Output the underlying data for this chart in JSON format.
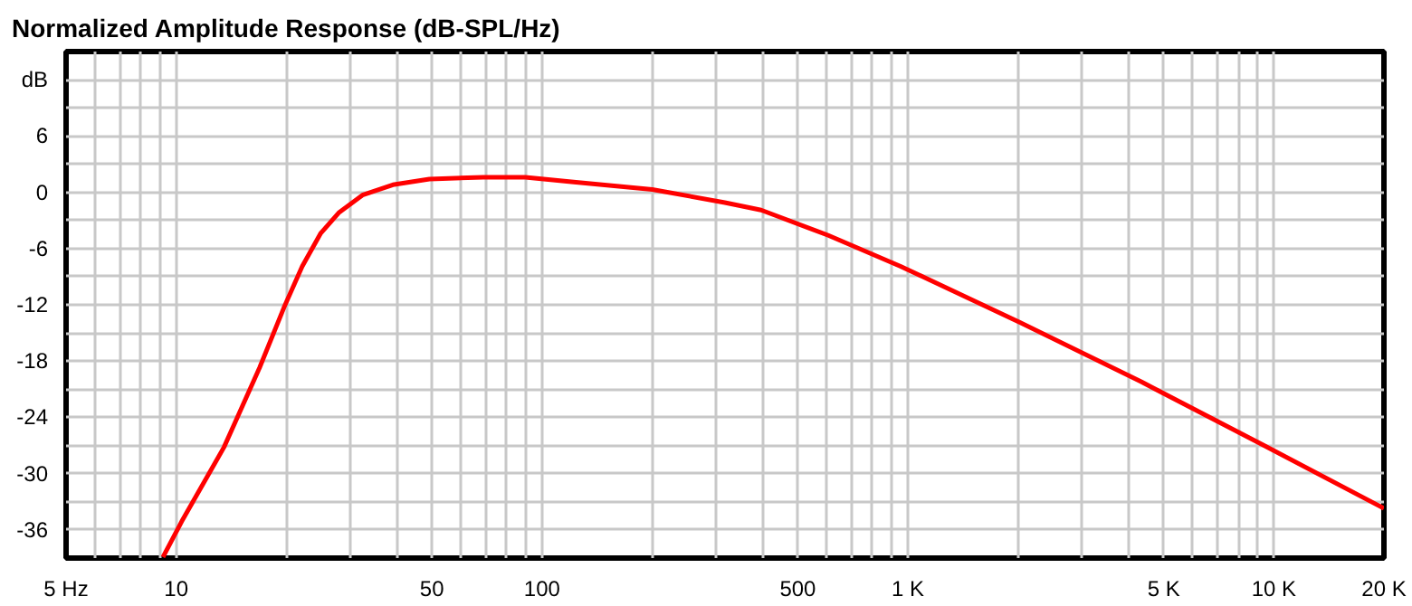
{
  "chart_data": {
    "type": "line",
    "title": "Normalized Amplitude Response (dB-SPL/Hz)",
    "log": "x",
    "grid": true,
    "marker": "none",
    "line_style": "solid",
    "x": [
      9.2,
      10.35,
      13.5,
      16.9,
      19.7,
      22.1,
      24.8,
      27.8,
      32.3,
      39.1,
      49.2,
      69,
      90,
      122,
      200,
      316,
      397,
      606,
      955,
      2030,
      4340,
      9300,
      20000
    ],
    "series": [
      {
        "color": "#ff0000",
        "values": [
          -38.9,
          -35.1,
          -27.2,
          -18.7,
          -12.3,
          -7.9,
          -4.4,
          -2.2,
          -0.3,
          0.8,
          1.4,
          1.6,
          1.6,
          1.1,
          0.3,
          -1.1,
          -1.9,
          -4.6,
          -7.9,
          -13.9,
          -20.2,
          -26.9,
          -33.7
        ]
      }
    ],
    "xlim": [
      5,
      20000
    ],
    "ylim": [
      -39,
      15
    ],
    "xticks": [
      {
        "value": 5,
        "label": "5 Hz"
      },
      {
        "value": 6,
        "label": null
      },
      {
        "value": 7,
        "label": null
      },
      {
        "value": 8,
        "label": null
      },
      {
        "value": 9,
        "label": null
      },
      10,
      {
        "value": 20,
        "label": null
      },
      {
        "value": 30,
        "label": null
      },
      {
        "value": 40,
        "label": null
      },
      50,
      {
        "value": 60,
        "label": null
      },
      {
        "value": 70,
        "label": null
      },
      {
        "value": 80,
        "label": null
      },
      {
        "value": 90,
        "label": null
      },
      100,
      {
        "value": 200,
        "label": null
      },
      {
        "value": 300,
        "label": null
      },
      {
        "value": 400,
        "label": null
      },
      500,
      {
        "value": 600,
        "label": null
      },
      {
        "value": 700,
        "label": null
      },
      {
        "value": 800,
        "label": null
      },
      {
        "value": 900,
        "label": null
      },
      {
        "value": 1000,
        "label": "1 K"
      },
      {
        "value": 2000,
        "label": null
      },
      {
        "value": 3000,
        "label": null
      },
      {
        "value": 4000,
        "label": null
      },
      {
        "value": 5000,
        "label": "5 K"
      },
      {
        "value": 6000,
        "label": null
      },
      {
        "value": 7000,
        "label": null
      },
      {
        "value": 8000,
        "label": null
      },
      {
        "value": 9000,
        "label": null
      },
      {
        "value": 10000,
        "label": "10 K"
      },
      {
        "value": 20000,
        "label": "20 K"
      }
    ],
    "yticks": [
      {
        "value": -39,
        "label": null
      },
      -36,
      {
        "value": -33,
        "label": null
      },
      -30,
      {
        "value": -27,
        "label": null
      },
      -24,
      {
        "value": -21,
        "label": null
      },
      -18,
      {
        "value": -15,
        "label": null
      },
      -12,
      {
        "value": -9,
        "label": null
      },
      -6,
      {
        "value": -3,
        "label": null
      },
      0,
      {
        "value": 3,
        "label": null
      },
      6,
      {
        "value": 9,
        "label": null
      },
      {
        "value": 12,
        "label": "dB"
      },
      {
        "value": 15,
        "label": null
      }
    ]
  }
}
